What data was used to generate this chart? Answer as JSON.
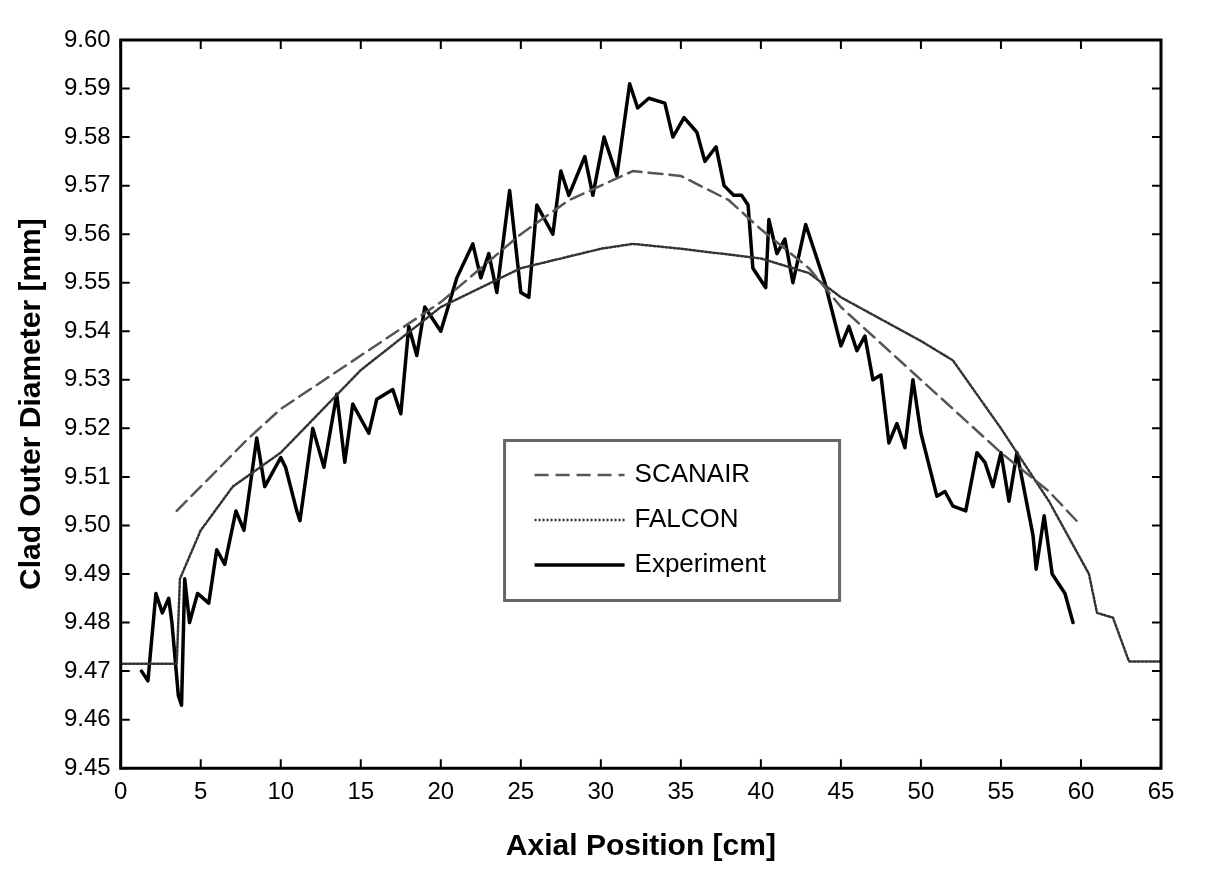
{
  "chart_data": {
    "type": "line",
    "xlabel": "Axial Position [cm]",
    "ylabel": "Clad Outer Diameter [mm]",
    "xlim": [
      0,
      65
    ],
    "xticks": [
      0,
      5,
      10,
      15,
      20,
      25,
      30,
      35,
      40,
      45,
      50,
      55,
      60,
      65
    ],
    "ylim": [
      9.45,
      9.6
    ],
    "yticks": [
      9.45,
      9.46,
      9.47,
      9.48,
      9.49,
      {
        "value": 9.5,
        "label": "9.50"
      },
      9.51,
      9.52,
      9.53,
      9.54,
      9.55,
      9.56,
      9.57,
      9.58,
      9.59,
      {
        "value": 9.6,
        "label": "9.60"
      }
    ],
    "grid": false,
    "legend": "center",
    "marker": "none",
    "series": [
      {
        "name": "SCANAIR",
        "color": "#555555",
        "line_style": "dashed",
        "x": [
          3.5,
          5,
          8,
          10,
          15,
          20,
          25,
          28,
          32,
          35,
          38,
          40,
          43,
          45,
          50,
          55,
          58,
          60
        ],
        "values": [
          9.503,
          9.508,
          9.518,
          9.524,
          9.535,
          9.546,
          9.56,
          9.567,
          9.573,
          9.572,
          9.567,
          9.561,
          9.553,
          9.545,
          9.53,
          9.515,
          9.507,
          9.5
        ]
      },
      {
        "name": "FALCON",
        "color": "#333333",
        "line_style": "dotted",
        "x": [
          0,
          3.5,
          3.7,
          5,
          7,
          10,
          15,
          20,
          25,
          30,
          32,
          35,
          40,
          43,
          45,
          50,
          52,
          55,
          58,
          60.5,
          61,
          62,
          63,
          65
        ],
        "values": [
          9.4715,
          9.4715,
          9.489,
          9.499,
          9.508,
          9.515,
          9.532,
          9.545,
          9.553,
          9.557,
          9.558,
          9.557,
          9.555,
          9.552,
          9.547,
          9.538,
          9.534,
          9.52,
          9.505,
          9.49,
          9.482,
          9.481,
          9.472,
          9.472
        ]
      },
      {
        "name": "Experiment",
        "color": "#000000",
        "line_style": "solid",
        "x": [
          1.3,
          1.7,
          2.2,
          2.6,
          3,
          3.2,
          3.6,
          3.8,
          4,
          4.3,
          4.8,
          5.5,
          6,
          6.5,
          7.2,
          7.7,
          8.5,
          9,
          10,
          10.3,
          11,
          11.2,
          12,
          12.7,
          13.5,
          14,
          14.5,
          15.5,
          16,
          17,
          17.5,
          18,
          18.5,
          19,
          20,
          21,
          22,
          22.5,
          23,
          23.5,
          24.3,
          25,
          25.5,
          26,
          27,
          27.5,
          28,
          29,
          29.5,
          30.2,
          31,
          31.8,
          32.3,
          33,
          34,
          34.5,
          35.2,
          36,
          36.5,
          37.2,
          37.7,
          38.3,
          38.8,
          39.2,
          39.5,
          40.3,
          40.5,
          41,
          41.5,
          42,
          42.8,
          43.5,
          44,
          45,
          45.5,
          46,
          46.5,
          47,
          47.5,
          48,
          48.5,
          49,
          49.5,
          50,
          51,
          51.5,
          52,
          52.8,
          53.5,
          54,
          54.5,
          55,
          55.5,
          56,
          57,
          57.2,
          57.7,
          58.2,
          59,
          59.5
        ],
        "values": [
          9.47,
          9.468,
          9.486,
          9.482,
          9.485,
          9.48,
          9.465,
          9.463,
          9.489,
          9.48,
          9.486,
          9.484,
          9.495,
          9.492,
          9.503,
          9.499,
          9.518,
          9.508,
          9.514,
          9.512,
          9.503,
          9.501,
          9.52,
          9.512,
          9.527,
          9.513,
          9.525,
          9.519,
          9.526,
          9.528,
          9.523,
          9.541,
          9.535,
          9.545,
          9.54,
          9.551,
          9.558,
          9.551,
          9.556,
          9.548,
          9.569,
          9.548,
          9.547,
          9.566,
          9.56,
          9.573,
          9.568,
          9.576,
          9.568,
          9.58,
          9.572,
          9.591,
          9.586,
          9.588,
          9.587,
          9.58,
          9.584,
          9.581,
          9.575,
          9.578,
          9.57,
          9.568,
          9.568,
          9.566,
          9.553,
          9.549,
          9.563,
          9.556,
          9.559,
          9.55,
          9.562,
          9.555,
          9.55,
          9.537,
          9.541,
          9.536,
          9.539,
          9.53,
          9.531,
          9.517,
          9.521,
          9.516,
          9.53,
          9.519,
          9.506,
          9.507,
          9.504,
          9.503,
          9.515,
          9.513,
          9.508,
          9.515,
          9.505,
          9.515,
          9.498,
          9.491,
          9.502,
          9.49,
          9.486,
          9.48
        ]
      }
    ]
  }
}
